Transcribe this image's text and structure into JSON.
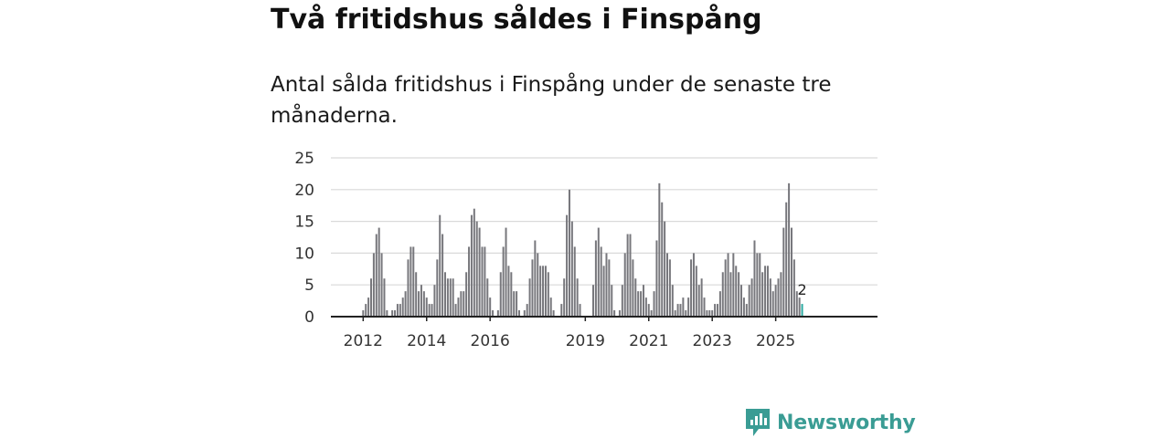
{
  "header": {
    "title": "Två fritidshus såldes i Finspång",
    "subtitle": "Antal sålda fritidshus i Finspång under de senaste tre månaderna."
  },
  "brand": {
    "name": "Newsworthy",
    "color": "#3a9c94"
  },
  "colors": {
    "bar": "#77777c",
    "highlight": "#2aa9a0",
    "grid": "#d9d9d9",
    "axis": "#222222"
  },
  "chart_data": {
    "type": "bar",
    "title": "Två fritidshus såldes i Finspång",
    "subtitle": "Antal sålda fritidshus i Finspång under de senaste tre månaderna.",
    "xlabel": "",
    "ylabel": "",
    "ylim": [
      0,
      25
    ],
    "yticks": [
      0,
      5,
      10,
      15,
      20,
      25
    ],
    "grid": true,
    "x_tick_labels": [
      {
        "label": "2012",
        "month": "2012-01"
      },
      {
        "label": "2014",
        "month": "2014-01"
      },
      {
        "label": "2016",
        "month": "2016-01"
      },
      {
        "label": "2019",
        "month": "2019-01"
      },
      {
        "label": "2021",
        "month": "2021-01"
      },
      {
        "label": "2023",
        "month": "2023-01"
      },
      {
        "label": "2025",
        "month": "2025-01"
      }
    ],
    "start_month": "2011-01",
    "end_month": "2025-12",
    "values": [
      0,
      0,
      0,
      0,
      0,
      0,
      0,
      0,
      0,
      0,
      0,
      0,
      1,
      2,
      3,
      6,
      10,
      13,
      14,
      10,
      6,
      1,
      0,
      1,
      1,
      2,
      2,
      3,
      4,
      9,
      11,
      11,
      7,
      4,
      5,
      4,
      3,
      2,
      2,
      5,
      9,
      16,
      13,
      7,
      6,
      6,
      6,
      2,
      3,
      4,
      4,
      7,
      11,
      16,
      17,
      15,
      14,
      11,
      11,
      6,
      3,
      1,
      0,
      1,
      7,
      11,
      14,
      8,
      7,
      4,
      4,
      1,
      0,
      1,
      2,
      6,
      9,
      12,
      10,
      8,
      8,
      8,
      7,
      3,
      1,
      0,
      0,
      2,
      6,
      16,
      20,
      15,
      11,
      6,
      2,
      0,
      0,
      0,
      0,
      5,
      12,
      14,
      11,
      8,
      10,
      9,
      5,
      1,
      0,
      1,
      5,
      10,
      13,
      13,
      9,
      6,
      4,
      4,
      5,
      3,
      2,
      1,
      4,
      12,
      21,
      18,
      15,
      10,
      9,
      5,
      1,
      2,
      2,
      3,
      1,
      3,
      9,
      10,
      8,
      5,
      6,
      3,
      1,
      1,
      1,
      2,
      2,
      4,
      7,
      9,
      10,
      7,
      10,
      8,
      7,
      5,
      3,
      2,
      5,
      6,
      12,
      10,
      10,
      7,
      8,
      8,
      6,
      4,
      5,
      6,
      7,
      14,
      18,
      21,
      14,
      9,
      4,
      3,
      2,
      null
    ],
    "highlight": {
      "month": "2025-11",
      "value": 2,
      "label": "2"
    }
  }
}
